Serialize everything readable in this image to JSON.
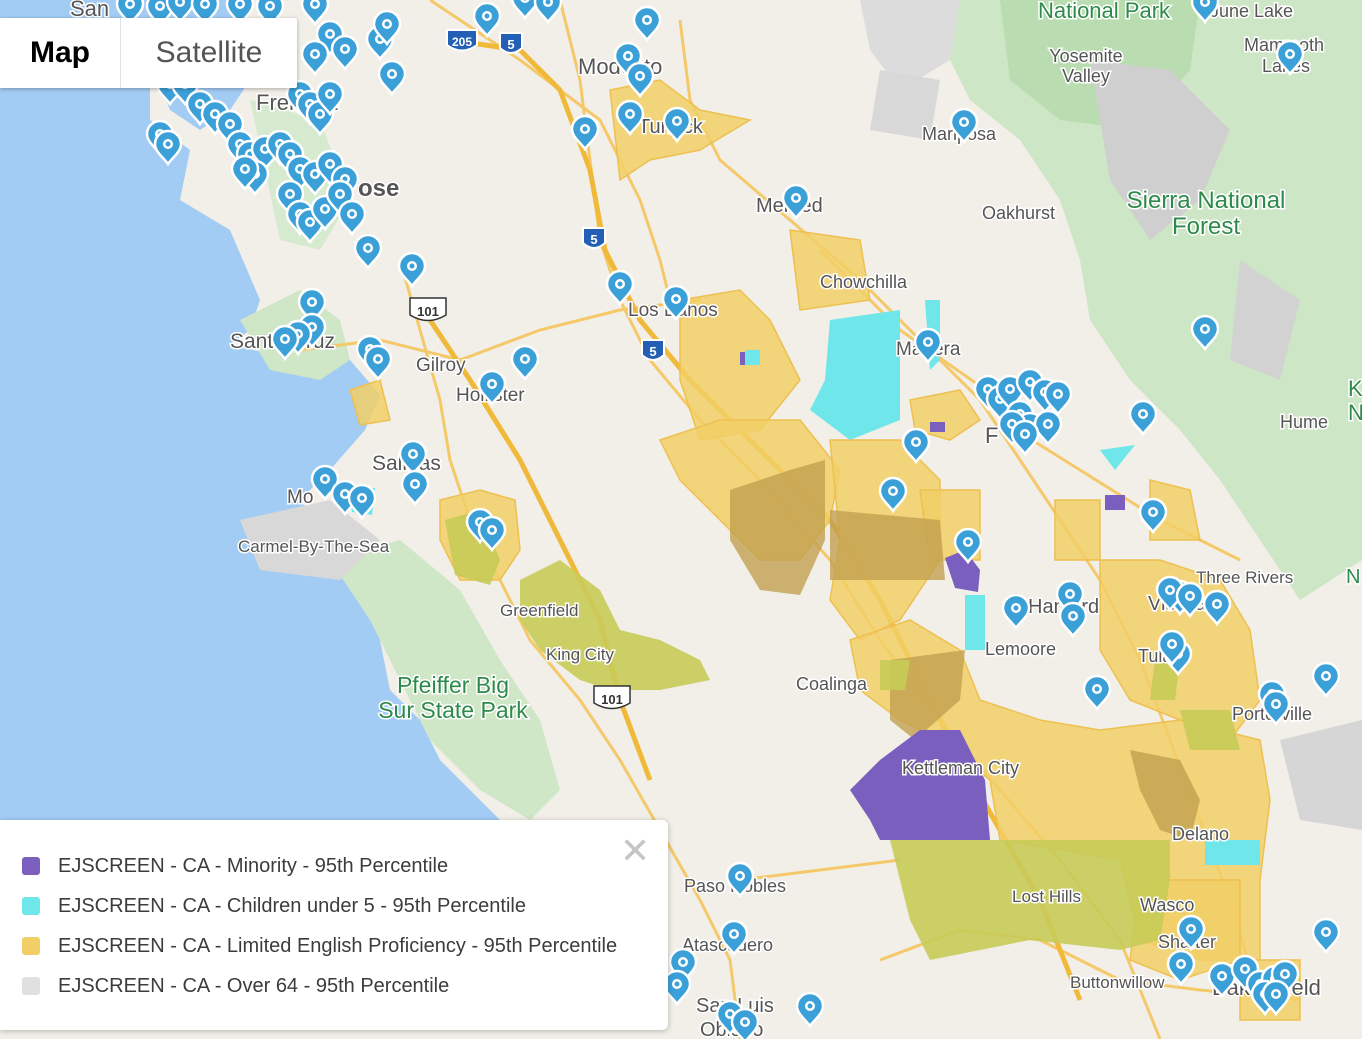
{
  "map_type": {
    "map": "Map",
    "satellite": "Satellite"
  },
  "legend": {
    "close_icon": "close-icon",
    "items": [
      {
        "label": "EJSCREEN - CA - Minority - 95th Percentile",
        "color": "#7a5fbf"
      },
      {
        "label": "EJSCREEN - CA - Children under 5 - 95th Percentile",
        "color": "#6fe6ea"
      },
      {
        "label": "EJSCREEN - CA - Limited English Proficiency - 95th Percentile",
        "color": "#f2cf66"
      },
      {
        "label": "EJSCREEN - CA - Over 64 - 95th Percentile",
        "color": "#e0e0e0"
      }
    ]
  },
  "places": {
    "san": "San",
    "modesto": "Modesto",
    "turlock": "Turlock",
    "fremont": "Fremont",
    "san_jose": "ose",
    "merced": "Merced",
    "oakhurst": "Oakhurst",
    "chowchilla": "Chowchilla",
    "los_banos": "Los Banos",
    "madera": "Madera",
    "santa_cruz": "Santa Cruz",
    "gilroy": "Gilroy",
    "hollister": "Hollister",
    "salinas": "Salinas",
    "monterey": "Mo",
    "carmel": "Carmel-By-The-Sea",
    "greenfield": "Greenfield",
    "king_city": "King City",
    "fresno": "F",
    "hanford": "Hanford",
    "visalia": "Visalia",
    "three_rivers": "Three Rivers",
    "lemoore": "Lemoore",
    "tulare": "Tulare",
    "coalinga": "Coalinga",
    "kettleman": "Kettleman City",
    "porterville": "Porterville",
    "delano": "Delano",
    "lost_hills": "Lost Hills",
    "wasco": "Wasco",
    "shafter": "Shafter",
    "buttonwillow": "Buttonwillow",
    "bakersfield": "Bakersfield",
    "paso_robles": "Paso Robles",
    "atascadero": "Atascadero",
    "san_luis": "San Luis",
    "obispo": "Obispo",
    "mariposa": "Mariposa",
    "june_lake": "June Lake",
    "mammoth": "Mammoth",
    "lakes": "Lakes",
    "yosemite_valley_1": "Yosemite",
    "yosemite_valley_2": "Valley",
    "hume": "Hume",
    "k_edge": "K",
    "n_edge": "N",
    "n_edge2": "N"
  },
  "parks": {
    "national_park": "National Park",
    "sierra_1": "Sierra National",
    "sierra_2": "Forest",
    "pfeiffer_1": "Pfeiffer Big",
    "pfeiffer_2": "Sur State Park"
  },
  "highways": {
    "i205": "205",
    "i5": "5",
    "us101": "101"
  },
  "marker_icon": "map-pin-icon"
}
